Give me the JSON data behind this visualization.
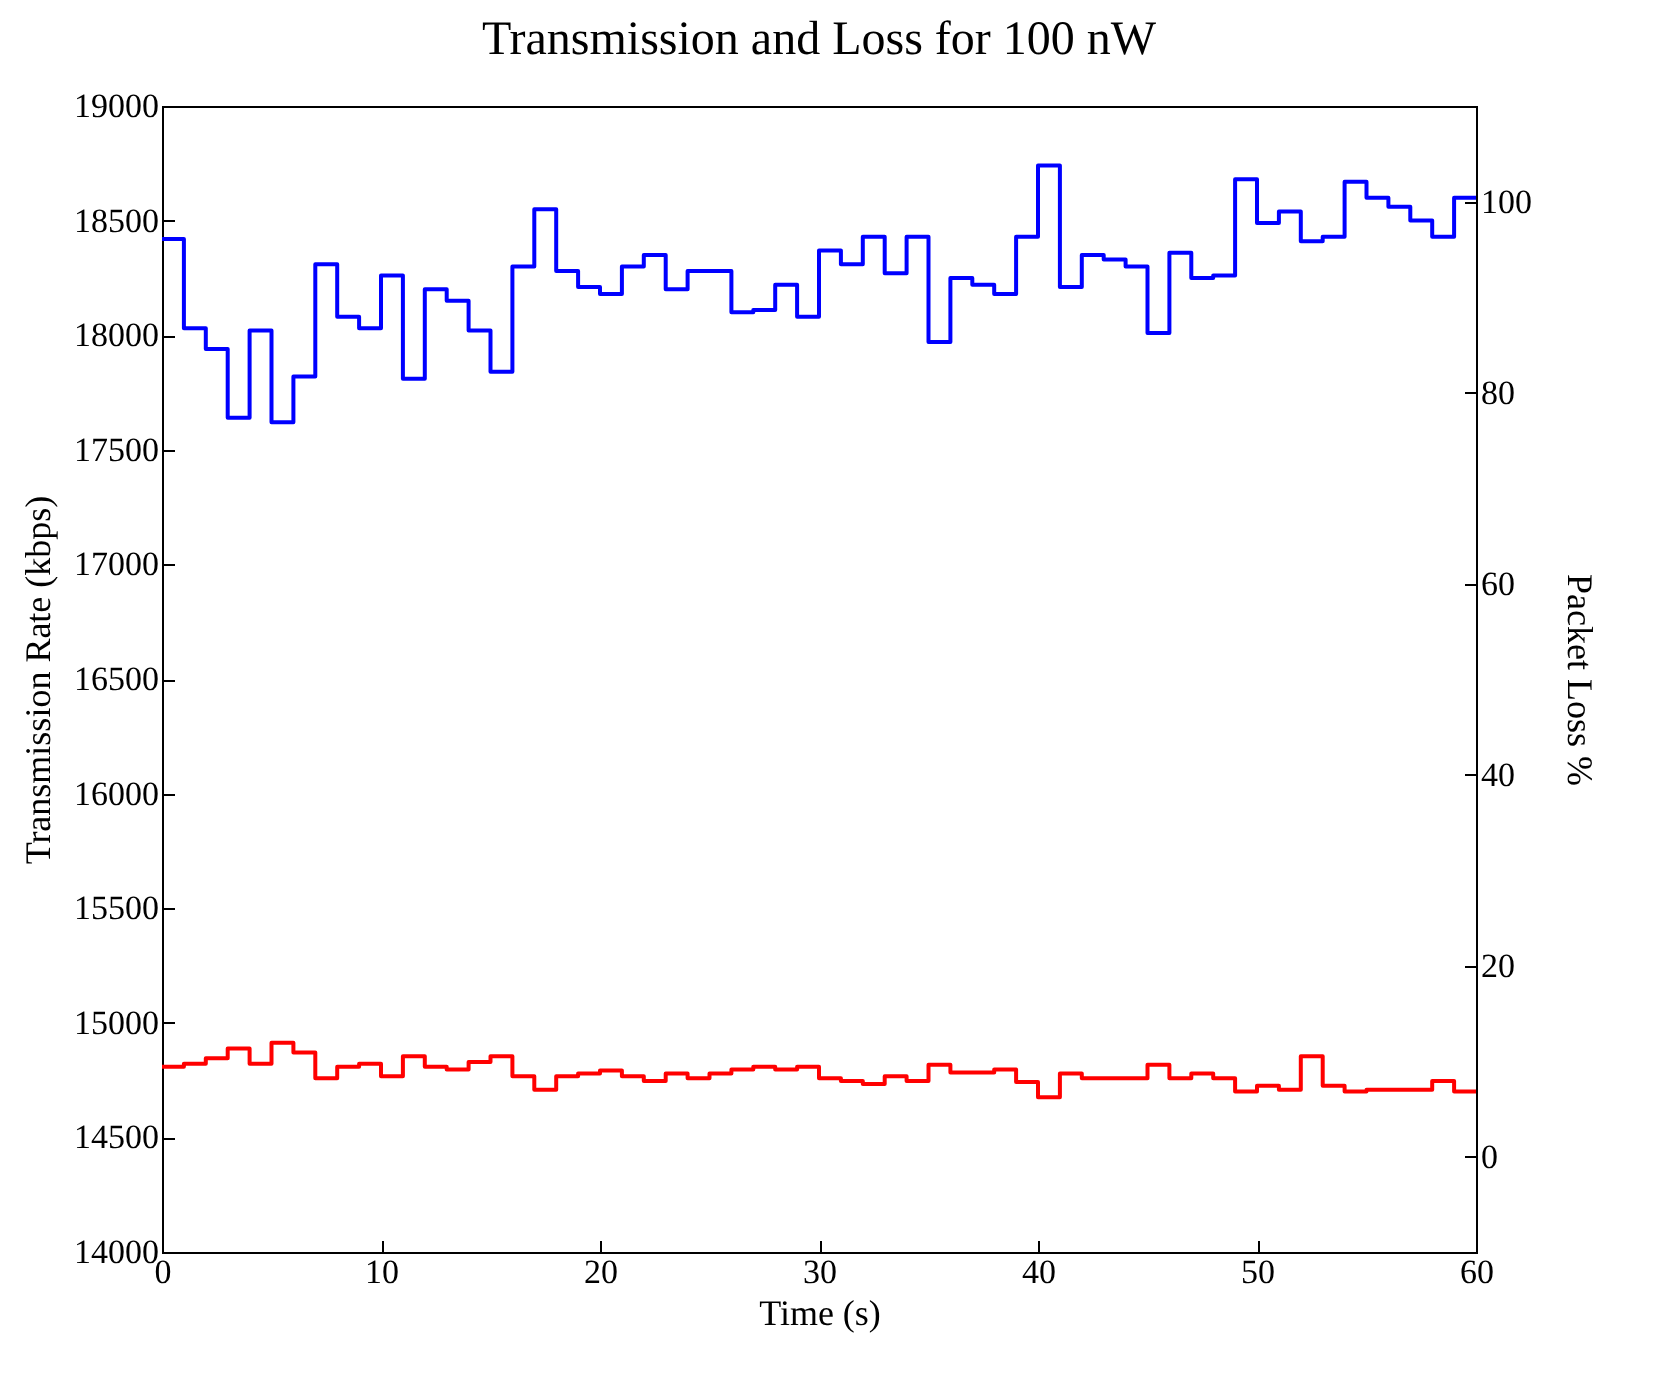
{
  "chart_data": {
    "type": "step",
    "title": "Transmission and Loss for 100 nW",
    "xlabel": "Time (s)",
    "ylabel": "Transmission Rate (kbps)",
    "y2label": "Packet Loss %",
    "x": [
      0,
      1,
      2,
      3,
      4,
      5,
      6,
      7,
      8,
      9,
      10,
      11,
      12,
      13,
      14,
      15,
      16,
      17,
      18,
      19,
      20,
      21,
      22,
      23,
      24,
      25,
      26,
      27,
      28,
      29,
      30,
      31,
      32,
      33,
      34,
      35,
      36,
      37,
      38,
      39,
      40,
      41,
      42,
      43,
      44,
      45,
      46,
      47,
      48,
      49,
      50,
      51,
      52,
      53,
      54,
      55,
      56,
      57,
      58,
      59,
      60
    ],
    "series": [
      {
        "color": "#0000ff",
        "values": [
          18420,
          18030,
          17940,
          17640,
          18020,
          17620,
          17820,
          18310,
          18080,
          18030,
          18260,
          17810,
          18200,
          18150,
          18020,
          17840,
          18300,
          18550,
          18280,
          18210,
          18180,
          18300,
          18350,
          18200,
          18280,
          18280,
          18100,
          18110,
          18220,
          18080,
          18370,
          18310,
          18430,
          18270,
          18430,
          17970,
          18250,
          18220,
          18180,
          18430,
          18740,
          18210,
          18350,
          18330,
          18300,
          18010,
          18360,
          18250,
          18260,
          18680,
          18490,
          18540,
          18410,
          18430,
          18670,
          18600,
          18560,
          18500,
          18430,
          18600,
          18600
        ]
      },
      {
        "color": "#ff0000",
        "axis": "y2",
        "values": [
          9.4,
          9.7,
          10.3,
          11.3,
          9.7,
          11.9,
          10.9,
          8.2,
          9.4,
          9.7,
          8.4,
          10.5,
          9.4,
          9.1,
          9.9,
          10.5,
          8.4,
          7.0,
          8.4,
          8.7,
          9.0,
          8.4,
          7.9,
          8.7,
          8.2,
          8.7,
          9.1,
          9.4,
          9.1,
          9.4,
          8.2,
          7.9,
          7.6,
          8.4,
          7.9,
          9.6,
          8.8,
          8.8,
          9.1,
          7.8,
          6.2,
          8.7,
          8.2,
          8.2,
          8.2,
          9.6,
          8.2,
          8.7,
          8.2,
          6.8,
          7.4,
          7.0,
          10.5,
          7.4,
          6.8,
          7.0,
          7.0,
          7.0,
          7.9,
          6.8,
          6.8
        ]
      }
    ],
    "xlim": [
      0,
      60
    ],
    "xticks": [
      0,
      10,
      20,
      30,
      40,
      50,
      60
    ],
    "ylim": [
      14000,
      19000
    ],
    "yticks": [
      14000,
      14500,
      15000,
      15500,
      16000,
      16500,
      17000,
      17500,
      18000,
      18500,
      19000
    ],
    "y2lim": [
      -10,
      110
    ],
    "y2ticks": [
      0,
      20,
      40,
      60,
      80,
      100
    ]
  }
}
